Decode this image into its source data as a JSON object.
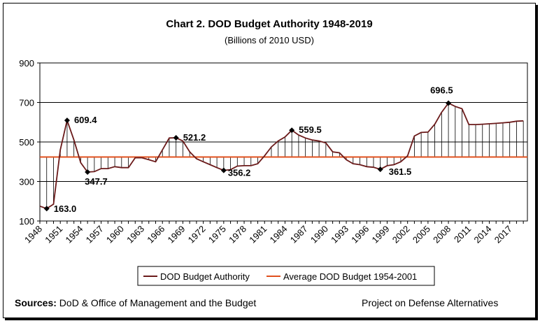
{
  "chart_data": {
    "type": "line",
    "title": "Chart 2. DOD Budget Authority 1948-2019",
    "subtitle": "(Billions of 2010 USD)",
    "ylim": [
      100,
      900
    ],
    "yticks": [
      100,
      300,
      500,
      700,
      900
    ],
    "xlim": [
      1948,
      2019
    ],
    "xtick_labels": [
      "1948",
      "1951",
      "1954",
      "1957",
      "1960",
      "1963",
      "1966",
      "1969",
      "1972",
      "1975",
      "1978",
      "1981",
      "1984",
      "1987",
      "1990",
      "1993",
      "1996",
      "1999",
      "2002",
      "2005",
      "2008",
      "2011",
      "2014",
      "2017"
    ],
    "grid": "horizontal",
    "legend_position": "bottom",
    "series": [
      {
        "name": "DOD Budget Authority",
        "color": "#6b1a1a",
        "x": [
          1948,
          1949,
          1950,
          1951,
          1952,
          1953,
          1954,
          1955,
          1956,
          1957,
          1958,
          1959,
          1960,
          1961,
          1962,
          1963,
          1964,
          1965,
          1966,
          1967,
          1968,
          1969,
          1970,
          1971,
          1972,
          1973,
          1974,
          1975,
          1976,
          1977,
          1978,
          1979,
          1980,
          1981,
          1982,
          1983,
          1984,
          1985,
          1986,
          1987,
          1988,
          1989,
          1990,
          1991,
          1992,
          1993,
          1994,
          1995,
          1996,
          1997,
          1998,
          1999,
          2000,
          2001,
          2002,
          2003,
          2004,
          2005,
          2006,
          2007,
          2008,
          2009,
          2010,
          2011,
          2012,
          2013,
          2014,
          2015,
          2016,
          2017,
          2018,
          2019
        ],
        "values": [
          175,
          163.0,
          185,
          460,
          609.4,
          510,
          395,
          347.7,
          350,
          365,
          365,
          375,
          370,
          370,
          420,
          420,
          410,
          400,
          460,
          520,
          521.2,
          505,
          450,
          415,
          400,
          385,
          370,
          356.2,
          360,
          378,
          380,
          380,
          390,
          430,
          475,
          505,
          525,
          559.5,
          535,
          520,
          510,
          505,
          495,
          450,
          445,
          410,
          390,
          385,
          375,
          372,
          361.5,
          380,
          385,
          400,
          430,
          530,
          548,
          550,
          590,
          650,
          696.5,
          680,
          668,
          588,
          588,
          590,
          592,
          594,
          597,
          600,
          605,
          607
        ]
      },
      {
        "name": "Average DOD Budget 1954-2001",
        "color": "#e0501e",
        "value": 424
      }
    ],
    "annotations": [
      {
        "x": 1949,
        "y": 163.0,
        "text": "163.0"
      },
      {
        "x": 1952,
        "y": 609.4,
        "text": "609.4"
      },
      {
        "x": 1955,
        "y": 347.7,
        "text": "347.7"
      },
      {
        "x": 1968,
        "y": 521.2,
        "text": "521.2"
      },
      {
        "x": 1975,
        "y": 356.2,
        "text": "356.2"
      },
      {
        "x": 1985,
        "y": 559.5,
        "text": "559.5"
      },
      {
        "x": 1998,
        "y": 361.5,
        "text": "361.5"
      },
      {
        "x": 2008,
        "y": 696.5,
        "text": "696.5"
      }
    ]
  },
  "legend": {
    "series_label": "DOD Budget Authority",
    "average_label": "Average DOD Budget 1954-2001"
  },
  "footer": {
    "sources_label": "Sources:",
    "sources_text": " DoD & Office of Management and the Budget",
    "credit": "Project on Defense Alternatives"
  }
}
